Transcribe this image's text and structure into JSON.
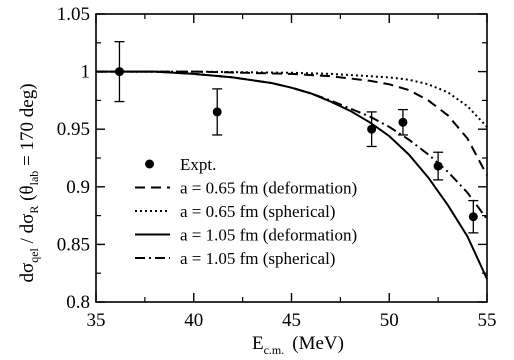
{
  "chart_data": {
    "type": "line",
    "title": "",
    "xlabel": {
      "main": "E",
      "sub": "c.m.",
      "rest": "(MeV)"
    },
    "ylabel": {
      "p1": "dσ",
      "p1sub": "qel",
      "p2": " / dσ",
      "p2sub": "R",
      "p3": "  (θ",
      "p3sub": "lab",
      "p4": " = 170 deg)"
    },
    "xlim": [
      35,
      55
    ],
    "ylim": [
      0.8,
      1.05
    ],
    "xticks": [
      35,
      40,
      45,
      50,
      55
    ],
    "xtick_labels": [
      "35",
      "40",
      "45",
      "50",
      "55"
    ],
    "yticks": [
      0.8,
      0.85,
      0.9,
      0.95,
      1.0,
      1.05
    ],
    "ytick_labels": [
      "0.8",
      "0.85",
      "0.9",
      "0.95",
      "1",
      "1.05"
    ],
    "grid": false,
    "legend_position": "bottom-left",
    "experiment": {
      "name": "Expt.",
      "points": [
        {
          "x": 36.2,
          "y": 1.0,
          "err": 0.026
        },
        {
          "x": 41.2,
          "y": 0.965,
          "err": 0.02
        },
        {
          "x": 49.1,
          "y": 0.95,
          "err": 0.015
        },
        {
          "x": 50.7,
          "y": 0.956,
          "err": 0.011
        },
        {
          "x": 52.5,
          "y": 0.918,
          "err": 0.012
        },
        {
          "x": 54.3,
          "y": 0.874,
          "err": 0.014
        }
      ]
    },
    "series": [
      {
        "name": "a = 0.65 fm (deformation)",
        "style": "dashed",
        "x": [
          35,
          40,
          45,
          47,
          49,
          50,
          51,
          52,
          53,
          54,
          55
        ],
        "y": [
          1.0,
          1.0,
          0.998,
          0.996,
          0.992,
          0.989,
          0.984,
          0.975,
          0.962,
          0.942,
          0.91
        ]
      },
      {
        "name": "a = 0.65 fm (spherical)",
        "style": "dotted",
        "x": [
          35,
          40,
          45,
          47,
          49,
          50,
          51,
          52,
          53,
          54,
          55
        ],
        "y": [
          1.0,
          1.0,
          0.999,
          0.998,
          0.996,
          0.995,
          0.993,
          0.989,
          0.982,
          0.97,
          0.952
        ]
      },
      {
        "name": "a = 1.05 fm (deformation)",
        "style": "solid",
        "x": [
          35,
          38,
          40,
          42,
          44,
          45,
          46,
          47,
          48,
          49,
          50,
          51,
          52,
          53,
          54,
          55
        ],
        "y": [
          1.0,
          1.0,
          0.998,
          0.995,
          0.99,
          0.986,
          0.981,
          0.974,
          0.966,
          0.956,
          0.944,
          0.928,
          0.908,
          0.884,
          0.857,
          0.82
        ]
      },
      {
        "name": "a = 1.05 fm (spherical)",
        "style": "dashdot",
        "x": [
          35,
          38,
          40,
          42,
          44,
          45,
          46,
          47,
          48,
          49,
          50,
          51,
          52,
          53,
          54,
          55
        ],
        "y": [
          1.0,
          1.0,
          0.998,
          0.995,
          0.99,
          0.986,
          0.981,
          0.975,
          0.968,
          0.961,
          0.952,
          0.941,
          0.928,
          0.913,
          0.895,
          0.872
        ]
      }
    ]
  }
}
